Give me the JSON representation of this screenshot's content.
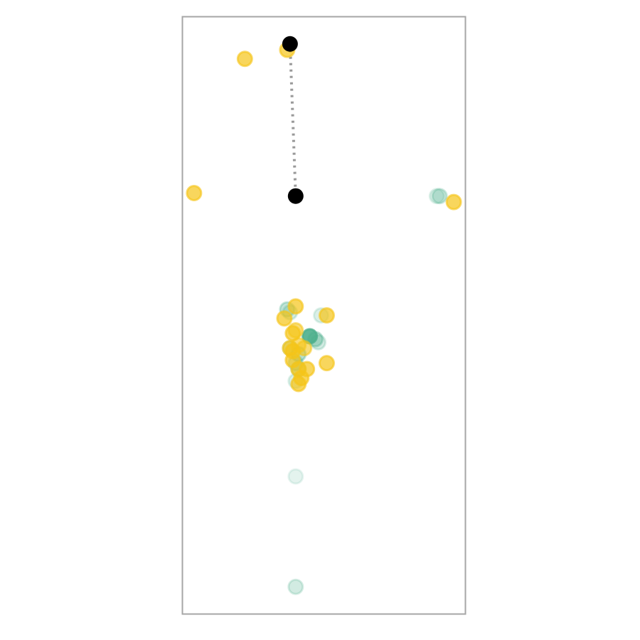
{
  "chart_data": {
    "type": "scatter",
    "title": "",
    "xlabel": "",
    "ylabel": "",
    "grid": false,
    "legend": "none",
    "axes_visible": false,
    "xlim": [
      0,
      100
    ],
    "ylim": [
      0,
      200
    ],
    "colors": {
      "frame": "#a6a6a6",
      "series_teal": "#4daf8c",
      "series_yellow": "#f5c518",
      "highlight": "#000000",
      "connector": "#999999"
    },
    "series": [
      {
        "color_key": "series_teal",
        "points": [
          {
            "x": 37,
            "y": 102,
            "opacity": 0.35
          },
          {
            "x": 38,
            "y": 101,
            "opacity": 0.25
          },
          {
            "x": 49,
            "y": 100,
            "opacity": 0.2
          },
          {
            "x": 45,
            "y": 93,
            "opacity": 0.9
          },
          {
            "x": 47,
            "y": 92,
            "opacity": 0.4
          },
          {
            "x": 48,
            "y": 91,
            "opacity": 0.25
          },
          {
            "x": 38,
            "y": 89,
            "opacity": 0.3
          },
          {
            "x": 41,
            "y": 87,
            "opacity": 0.4
          },
          {
            "x": 40,
            "y": 84,
            "opacity": 0.3
          },
          {
            "x": 41,
            "y": 82,
            "opacity": 0.35
          },
          {
            "x": 40,
            "y": 78,
            "opacity": 0.2
          },
          {
            "x": 40,
            "y": 46,
            "opacity": 0.15
          },
          {
            "x": 40,
            "y": 9,
            "opacity": 0.25
          },
          {
            "x": 91,
            "y": 140,
            "opacity": 0.3
          },
          {
            "x": 90,
            "y": 140,
            "opacity": 0.2
          }
        ]
      },
      {
        "color_key": "series_yellow",
        "points": [
          {
            "x": 22,
            "y": 186,
            "opacity": 0.7
          },
          {
            "x": 37,
            "y": 189,
            "opacity": 0.7
          },
          {
            "x": 4,
            "y": 141,
            "opacity": 0.7
          },
          {
            "x": 96,
            "y": 138,
            "opacity": 0.7
          },
          {
            "x": 40,
            "y": 103,
            "opacity": 0.7
          },
          {
            "x": 36,
            "y": 99,
            "opacity": 0.7
          },
          {
            "x": 51,
            "y": 100,
            "opacity": 0.7
          },
          {
            "x": 39,
            "y": 94,
            "opacity": 0.7
          },
          {
            "x": 40,
            "y": 95,
            "opacity": 0.6
          },
          {
            "x": 38,
            "y": 89,
            "opacity": 0.7
          },
          {
            "x": 39,
            "y": 88,
            "opacity": 0.7
          },
          {
            "x": 41,
            "y": 90,
            "opacity": 0.6
          },
          {
            "x": 43,
            "y": 89,
            "opacity": 0.6
          },
          {
            "x": 39,
            "y": 85,
            "opacity": 0.7
          },
          {
            "x": 51,
            "y": 84,
            "opacity": 0.7
          },
          {
            "x": 44,
            "y": 82,
            "opacity": 0.7
          },
          {
            "x": 41,
            "y": 82,
            "opacity": 0.7
          },
          {
            "x": 42,
            "y": 79,
            "opacity": 0.7
          },
          {
            "x": 41,
            "y": 77,
            "opacity": 0.7
          }
        ]
      },
      {
        "color_key": "highlight",
        "points": [
          {
            "x": 38,
            "y": 191,
            "opacity": 1
          },
          {
            "x": 40,
            "y": 140,
            "opacity": 1
          }
        ]
      }
    ],
    "connector": {
      "style": "dotted",
      "from": {
        "x": 38,
        "y": 191
      },
      "to": {
        "x": 40,
        "y": 140
      }
    }
  }
}
